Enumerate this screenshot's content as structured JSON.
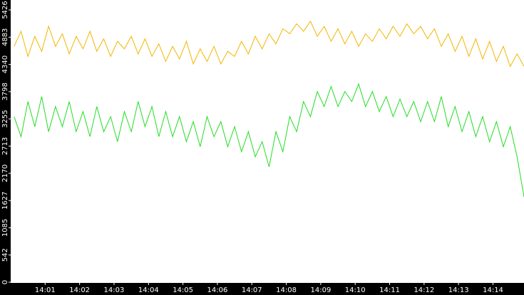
{
  "chart_data": {
    "type": "line",
    "grid": false,
    "xlim": [
      840,
      854.9
    ],
    "ylim": [
      0,
      5624
    ],
    "yticks": [
      0,
      542,
      1085,
      1627,
      2170,
      2713,
      3255,
      3798,
      4340,
      4883,
      5426
    ],
    "xticks": [
      {
        "value": 841,
        "label": "14:01"
      },
      {
        "value": 842,
        "label": "14:02"
      },
      {
        "value": 843,
        "label": "14:03"
      },
      {
        "value": 844,
        "label": "14:04"
      },
      {
        "value": 845,
        "label": "14:05"
      },
      {
        "value": 846,
        "label": "14:06"
      },
      {
        "value": 847,
        "label": "14:07"
      },
      {
        "value": 848,
        "label": "14:08"
      },
      {
        "value": 849,
        "label": "14:09"
      },
      {
        "value": 850,
        "label": "14:10"
      },
      {
        "value": 851,
        "label": "14:11"
      },
      {
        "value": 852,
        "label": "14:12"
      },
      {
        "value": 853,
        "label": "14:13"
      },
      {
        "value": 854,
        "label": "14:14"
      }
    ],
    "x": [
      840.1,
      840.3,
      840.5,
      840.7,
      840.9,
      841.1,
      841.3,
      841.5,
      841.7,
      841.9,
      842.1,
      842.3,
      842.5,
      842.7,
      842.9,
      843.1,
      843.3,
      843.5,
      843.7,
      843.9,
      844.1,
      844.3,
      844.5,
      844.7,
      844.9,
      845.1,
      845.3,
      845.5,
      845.7,
      845.9,
      846.1,
      846.3,
      846.5,
      846.7,
      846.9,
      847.1,
      847.3,
      847.5,
      847.7,
      847.9,
      848.1,
      848.3,
      848.5,
      848.7,
      848.9,
      849.1,
      849.3,
      849.5,
      849.7,
      849.9,
      850.1,
      850.3,
      850.5,
      850.7,
      850.9,
      851.1,
      851.3,
      851.5,
      851.7,
      851.9,
      852.1,
      852.3,
      852.5,
      852.7,
      852.9,
      853.1,
      853.3,
      853.5,
      853.7,
      853.9,
      854.1,
      854.3,
      854.5,
      854.7,
      854.9
    ],
    "series": [
      {
        "color": "#f2b600",
        "values": [
          4700,
          5000,
          4500,
          4900,
          4600,
          5100,
          4700,
          4950,
          4550,
          4900,
          4650,
          5000,
          4600,
          4850,
          4500,
          4800,
          4650,
          4900,
          4550,
          4850,
          4500,
          4750,
          4400,
          4700,
          4450,
          4800,
          4350,
          4650,
          4400,
          4700,
          4350,
          4600,
          4500,
          4800,
          4550,
          4900,
          4650,
          4950,
          4750,
          5050,
          4950,
          5150,
          5000,
          5200,
          4900,
          5100,
          4800,
          5050,
          4750,
          5000,
          4700,
          4950,
          4800,
          5050,
          4850,
          5100,
          4900,
          5150,
          4950,
          5100,
          4850,
          5050,
          4700,
          4950,
          4600,
          4900,
          4500,
          4850,
          4450,
          4800,
          4400,
          4700,
          4300,
          4550,
          4300
        ]
      },
      {
        "color": "#22dd22",
        "values": [
          3300,
          2900,
          3600,
          3100,
          3700,
          3000,
          3500,
          3100,
          3600,
          3000,
          3400,
          2900,
          3500,
          3000,
          3300,
          2800,
          3400,
          3000,
          3600,
          3100,
          3500,
          2900,
          3400,
          2900,
          3300,
          2800,
          3200,
          2700,
          3300,
          2900,
          3200,
          2700,
          3100,
          2600,
          3000,
          2500,
          2800,
          2300,
          3000,
          2600,
          3300,
          3000,
          3600,
          3300,
          3800,
          3500,
          3900,
          3500,
          3800,
          3600,
          3950,
          3500,
          3800,
          3400,
          3700,
          3300,
          3650,
          3300,
          3600,
          3200,
          3600,
          3200,
          3700,
          3100,
          3500,
          3000,
          3400,
          2900,
          3300,
          2800,
          3200,
          2700,
          3100,
          2500,
          1700
        ]
      }
    ]
  }
}
